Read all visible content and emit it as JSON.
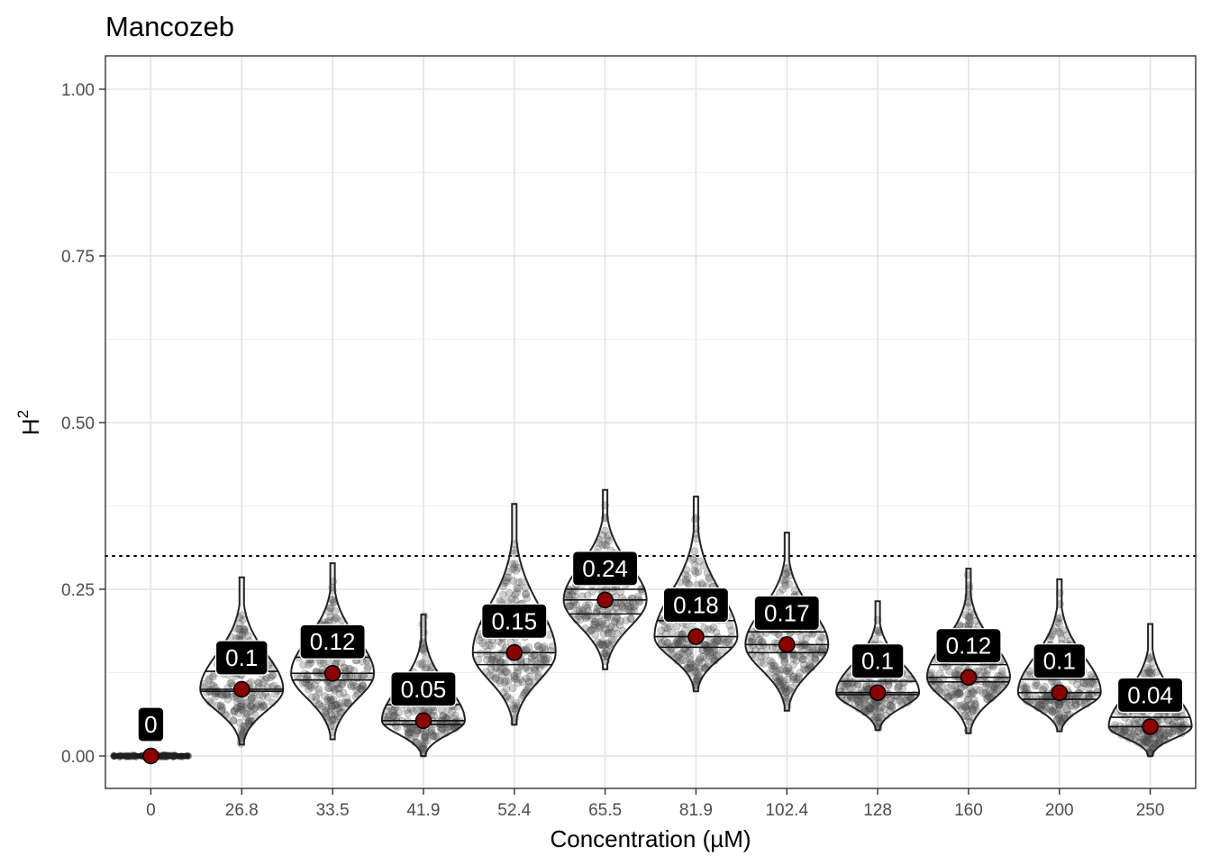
{
  "chart_data": {
    "type": "violin",
    "title": "Mancozeb",
    "xlabel": "Concentration (µM)",
    "ylabel": "H",
    "ylabel_superscript": "2",
    "ylim": [
      -0.05,
      1.05
    ],
    "yticks": [
      0.0,
      0.25,
      0.5,
      0.75,
      1.0
    ],
    "ytick_labels": [
      "0.00",
      "0.25",
      "0.50",
      "0.75",
      "1.00"
    ],
    "threshold": 0.3,
    "grid": true,
    "categories": [
      "0",
      "26.8",
      "33.5",
      "41.9",
      "52.4",
      "65.5",
      "81.9",
      "102.4",
      "128",
      "160",
      "200",
      "250"
    ],
    "series": [
      {
        "label": "0",
        "median": 0.0,
        "min": 0.0,
        "max": 0.0,
        "q25": 0.0,
        "q50": 0.0,
        "q75": 0.0
      },
      {
        "label": "0.1",
        "median": 0.1,
        "min": 0.017,
        "max": 0.268,
        "q25": 0.097,
        "q50": 0.1,
        "q75": 0.127
      },
      {
        "label": "0.12",
        "median": 0.124,
        "min": 0.025,
        "max": 0.289,
        "q25": 0.114,
        "q50": 0.124,
        "q75": 0.148
      },
      {
        "label": "0.05",
        "median": 0.053,
        "min": 0.0,
        "max": 0.212,
        "q25": 0.047,
        "q50": 0.053,
        "q75": 0.077
      },
      {
        "label": "0.15",
        "median": 0.155,
        "min": 0.047,
        "max": 0.378,
        "q25": 0.137,
        "q50": 0.155,
        "q75": 0.198
      },
      {
        "label": "0.24",
        "median": 0.234,
        "min": 0.13,
        "max": 0.399,
        "q25": 0.213,
        "q50": 0.234,
        "q75": 0.25
      },
      {
        "label": "0.18",
        "median": 0.179,
        "min": 0.097,
        "max": 0.389,
        "q25": 0.163,
        "q50": 0.179,
        "q75": 0.203
      },
      {
        "label": "0.17",
        "median": 0.167,
        "min": 0.068,
        "max": 0.335,
        "q25": 0.155,
        "q50": 0.167,
        "q75": 0.186
      },
      {
        "label": "0.1",
        "median": 0.095,
        "min": 0.039,
        "max": 0.232,
        "q25": 0.092,
        "q50": 0.095,
        "q75": 0.112
      },
      {
        "label": "0.12",
        "median": 0.118,
        "min": 0.034,
        "max": 0.281,
        "q25": 0.111,
        "q50": 0.118,
        "q75": 0.137
      },
      {
        "label": "0.1",
        "median": 0.095,
        "min": 0.037,
        "max": 0.265,
        "q25": 0.085,
        "q50": 0.095,
        "q75": 0.115
      },
      {
        "label": "0.04",
        "median": 0.044,
        "min": 0.0,
        "max": 0.198,
        "q25": 0.044,
        "q50": 0.044,
        "q75": 0.058
      }
    ],
    "colors": {
      "median_point": "#8b0000",
      "jitter": "#555555",
      "violin_stroke": "#222222",
      "badge_fill": "#000000",
      "badge_text": "#ffffff",
      "grid_major": "#e3e3e3",
      "grid_minor": "#f0f0f0"
    }
  }
}
